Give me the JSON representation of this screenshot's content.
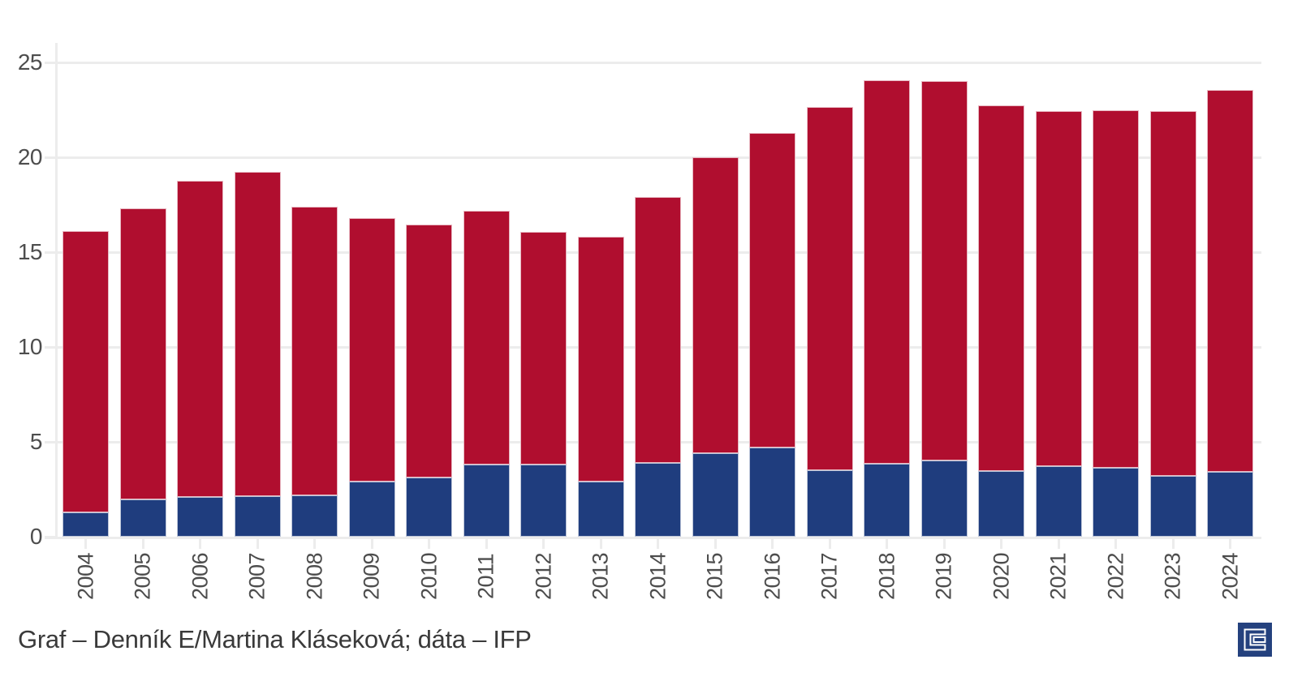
{
  "chart_data": {
    "type": "bar",
    "stacked": true,
    "title": "",
    "xlabel": "",
    "ylabel": "",
    "categories": [
      "2004",
      "2005",
      "2006",
      "2007",
      "2008",
      "2009",
      "2010",
      "2011",
      "2012",
      "2013",
      "2014",
      "2015",
      "2016",
      "2017",
      "2018",
      "2019",
      "2020",
      "2021",
      "2022",
      "2023",
      "2024"
    ],
    "series": [
      {
        "name": "bottom-blue-segment",
        "color": "#1f3d7e",
        "values": [
          1.3,
          1.95,
          2.1,
          2.15,
          2.2,
          2.9,
          3.1,
          3.8,
          3.8,
          2.9,
          3.9,
          4.4,
          4.7,
          3.5,
          3.85,
          4.0,
          3.45,
          3.7,
          3.65,
          3.2,
          3.4
        ]
      },
      {
        "name": "top-red-segment",
        "color": "#b00e2f",
        "values": [
          14.8,
          15.35,
          16.65,
          17.1,
          15.2,
          13.9,
          13.35,
          13.4,
          12.25,
          12.9,
          14.0,
          15.6,
          16.6,
          19.15,
          20.2,
          20.0,
          19.3,
          18.75,
          18.85,
          19.25,
          20.15
        ]
      }
    ],
    "stack_totals": [
      16.1,
      17.3,
      18.75,
      19.25,
      17.4,
      16.8,
      16.45,
      17.2,
      16.05,
      15.8,
      17.9,
      20.0,
      21.3,
      22.65,
      24.05,
      24.0,
      22.75,
      22.45,
      22.5,
      22.45,
      23.55
    ],
    "ylim": [
      0,
      25
    ],
    "yticks": [
      0,
      5,
      10,
      15,
      20,
      25
    ],
    "grid": "horizontal",
    "legend_position": "none"
  },
  "caption": {
    "text": "Graf – Denník E/Martina Kláseková; dáta – IFP"
  },
  "logo": {
    "name": "dennik-e-logo",
    "letter": "E",
    "background": "#24417e",
    "glyph_color": "#ffffff"
  },
  "theme": {
    "background": "#ffffff",
    "grid_color": "#ececec",
    "axis_color": "#ececec",
    "tick_label_color": "#4d4d4d",
    "caption_color": "#3a3a3a",
    "bar_stroke": "rgba(255,255,255,0.7)"
  }
}
